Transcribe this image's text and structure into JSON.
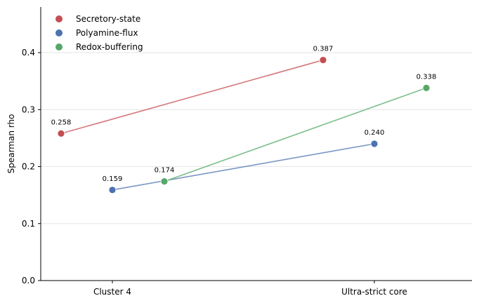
{
  "chart_data": {
    "type": "line",
    "categories": [
      "Cluster 4",
      "Ultra-strict core"
    ],
    "ylabel": "Spearman rho",
    "xlabel": "",
    "ylim": [
      0,
      0.48
    ],
    "yticks": [
      0.0,
      0.1,
      0.2,
      0.3,
      0.4
    ],
    "ytick_labels": [
      "0.0",
      "0.1",
      "0.2",
      "0.3",
      "0.4"
    ],
    "grid": "horizontal",
    "legend_position": "top-left",
    "series": [
      {
        "name": "Secretory-state",
        "color": "#c44e52",
        "line_color": "#d4787b",
        "values": [
          0.258,
          0.387
        ],
        "labels": [
          "0.258",
          "0.387"
        ]
      },
      {
        "name": "Polyamine-flux",
        "color": "#4c72b0",
        "line_color": "#7a97c4",
        "values": [
          0.159,
          0.24
        ],
        "labels": [
          "0.159",
          "0.240"
        ]
      },
      {
        "name": "Redox-buffering",
        "color": "#55a868",
        "line_color": "#7fbf8c",
        "values": [
          0.174,
          0.338
        ],
        "labels": [
          "0.174",
          "0.338"
        ]
      }
    ]
  }
}
